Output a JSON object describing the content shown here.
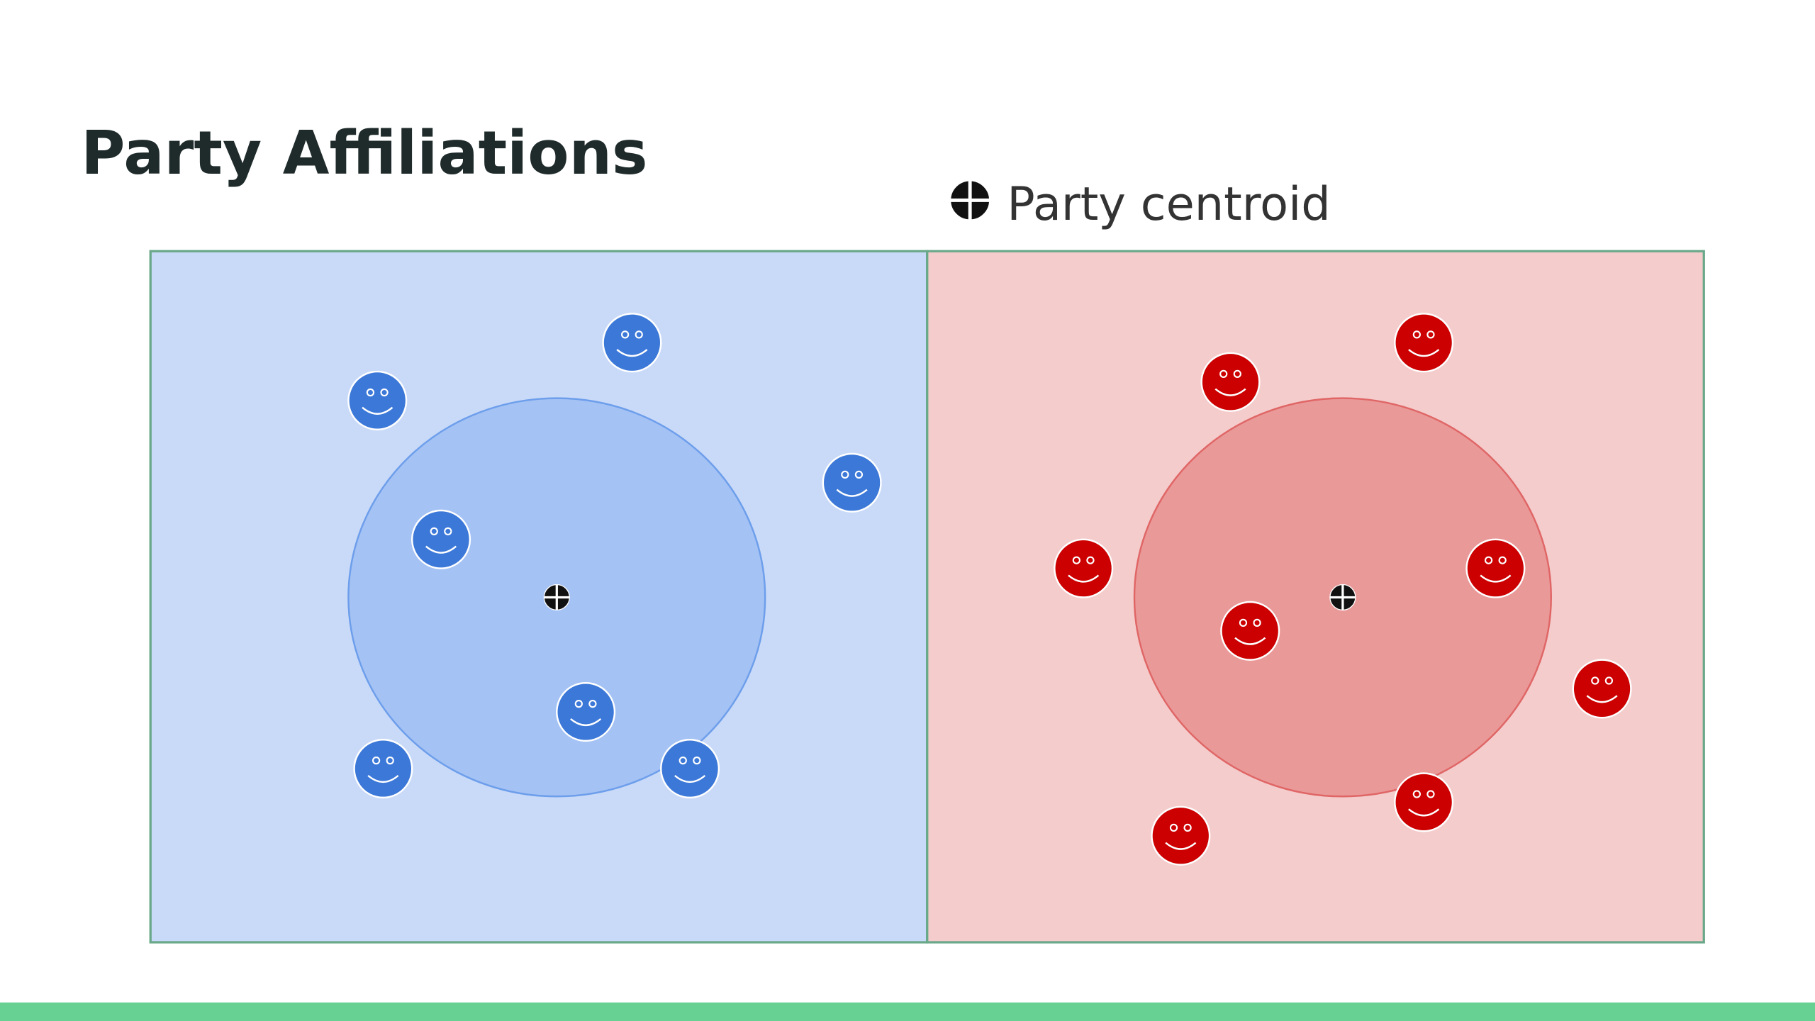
{
  "title": "Party Affiliations",
  "legend": {
    "label": "Party centroid"
  }
}
